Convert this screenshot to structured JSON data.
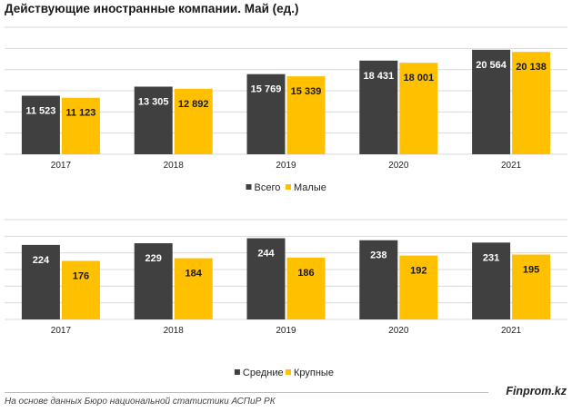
{
  "title": "Действующие иностранные компании. Май (ед.)",
  "colors": {
    "dark": "#404040",
    "yellow": "#FFC000",
    "grid": "#d9d9d9"
  },
  "chart_data": [
    {
      "type": "bar",
      "categories": [
        "2017",
        "2018",
        "2019",
        "2020",
        "2021"
      ],
      "series": [
        {
          "name": "Всего",
          "values": [
            11523,
            13305,
            15769,
            18431,
            20564
          ],
          "labels": [
            "11 523",
            "13 305",
            "15 769",
            "18 431",
            "20 564"
          ],
          "color": "#404040"
        },
        {
          "name": "Малые",
          "values": [
            11123,
            12892,
            15339,
            18001,
            20138
          ],
          "labels": [
            "11 123",
            "12 892",
            "15 339",
            "18 001",
            "20 138"
          ],
          "color": "#FFC000"
        }
      ],
      "ylim": [
        0,
        25000
      ],
      "grid": true,
      "legend": "bottom"
    },
    {
      "type": "bar",
      "categories": [
        "2017",
        "2018",
        "2019",
        "2020",
        "2021"
      ],
      "series": [
        {
          "name": "Средние",
          "values": [
            224,
            229,
            244,
            238,
            231
          ],
          "labels": [
            "224",
            "229",
            "244",
            "238",
            "231"
          ],
          "color": "#404040"
        },
        {
          "name": "Крупные",
          "values": [
            176,
            184,
            186,
            192,
            195
          ],
          "labels": [
            "176",
            "184",
            "186",
            "192",
            "195"
          ],
          "color": "#FFC000"
        }
      ],
      "ylim": [
        0,
        300
      ],
      "grid": true,
      "legend": "bottom"
    }
  ],
  "footer": {
    "source": "На основе данных Бюро национальной статистики АСПиР РК",
    "brand": "Finprom.kz"
  }
}
